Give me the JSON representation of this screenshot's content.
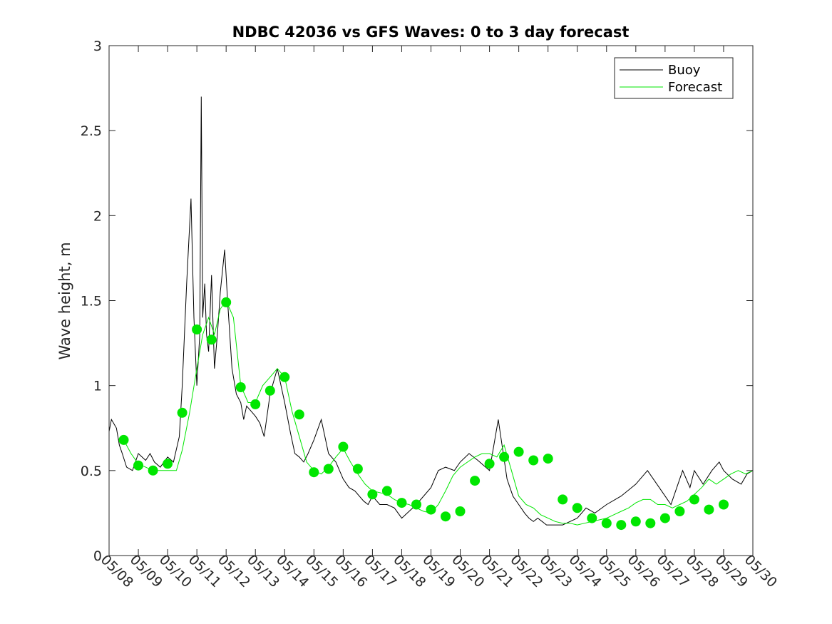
{
  "chart_data": {
    "type": "line",
    "title": "NDBC 42036 vs GFS Waves: 0 to 3 day forecast",
    "xlabel": "",
    "ylabel": "Wave height, m",
    "x_range": [
      0,
      22
    ],
    "ylim": [
      0,
      3
    ],
    "y_ticks": [
      0,
      0.5,
      1,
      1.5,
      2,
      2.5,
      3
    ],
    "y_tick_labels": [
      "0",
      "0.5",
      "1",
      "1.5",
      "2",
      "2.5",
      "3"
    ],
    "x_ticks": [
      0,
      1,
      2,
      3,
      4,
      5,
      6,
      7,
      8,
      9,
      10,
      11,
      12,
      13,
      14,
      15,
      16,
      17,
      18,
      19,
      20,
      21,
      22
    ],
    "x_tick_labels": [
      "05/08",
      "05/09",
      "05/10",
      "05/11",
      "05/12",
      "05/13",
      "05/14",
      "05/15",
      "05/16",
      "05/17",
      "05/18",
      "05/19",
      "05/20",
      "05/21",
      "05/22",
      "05/23",
      "05/24",
      "05/25",
      "05/26",
      "05/27",
      "05/28",
      "05/29",
      "05/30"
    ],
    "grid": false,
    "legend_position": "top-right",
    "legend": [
      {
        "name": "Buoy",
        "color": "#000000"
      },
      {
        "name": "Forecast",
        "color": "#00e600"
      }
    ],
    "colors": {
      "buoy": "#000000",
      "forecast": "#00e600",
      "analysis_points": "#00e600"
    },
    "series": [
      {
        "name": "Buoy",
        "x": [
          0.0,
          0.08,
          0.25,
          0.35,
          0.45,
          0.6,
          0.8,
          1.0,
          1.25,
          1.4,
          1.55,
          1.75,
          2.0,
          2.2,
          2.4,
          2.5,
          2.65,
          2.8,
          2.9,
          3.0,
          3.1,
          3.15,
          3.2,
          3.27,
          3.33,
          3.4,
          3.5,
          3.6,
          3.7,
          3.8,
          3.95,
          4.05,
          4.2,
          4.35,
          4.5,
          4.6,
          4.7,
          4.85,
          5.0,
          5.15,
          5.3,
          5.5,
          5.75,
          6.0,
          6.2,
          6.35,
          6.5,
          6.65,
          6.8,
          7.0,
          7.25,
          7.5,
          7.75,
          8.0,
          8.2,
          8.4,
          8.55,
          8.7,
          8.85,
          9.0,
          9.25,
          9.5,
          9.75,
          10.0,
          10.5,
          11.0,
          11.25,
          11.5,
          11.8,
          12.0,
          12.3,
          12.6,
          13.0,
          13.3,
          13.6,
          13.8,
          14.0,
          14.2,
          14.35,
          14.5,
          14.65,
          14.8,
          14.95,
          15.1,
          15.25,
          15.5,
          15.75,
          16.0,
          16.3,
          16.6,
          17.0,
          17.5,
          18.0,
          18.4,
          18.8,
          19.2,
          19.6,
          19.85,
          20.0,
          20.3,
          20.6,
          20.85,
          21.0,
          21.3,
          21.6,
          21.8,
          22.0
        ],
        "values": [
          0.73,
          0.8,
          0.75,
          0.65,
          0.6,
          0.52,
          0.5,
          0.6,
          0.56,
          0.6,
          0.55,
          0.52,
          0.58,
          0.55,
          0.7,
          1.0,
          1.6,
          2.1,
          1.4,
          1.0,
          1.3,
          2.7,
          1.4,
          1.6,
          1.3,
          1.2,
          1.65,
          1.1,
          1.3,
          1.55,
          1.8,
          1.5,
          1.1,
          0.95,
          0.9,
          0.8,
          0.88,
          0.85,
          0.82,
          0.78,
          0.7,
          0.95,
          1.1,
          0.9,
          0.72,
          0.6,
          0.58,
          0.55,
          0.6,
          0.68,
          0.8,
          0.6,
          0.55,
          0.45,
          0.4,
          0.38,
          0.35,
          0.32,
          0.3,
          0.35,
          0.3,
          0.3,
          0.28,
          0.22,
          0.3,
          0.4,
          0.5,
          0.52,
          0.5,
          0.55,
          0.6,
          0.56,
          0.5,
          0.8,
          0.45,
          0.35,
          0.3,
          0.25,
          0.22,
          0.2,
          0.22,
          0.2,
          0.18,
          0.18,
          0.18,
          0.18,
          0.2,
          0.22,
          0.28,
          0.25,
          0.3,
          0.35,
          0.42,
          0.5,
          0.4,
          0.3,
          0.5,
          0.4,
          0.5,
          0.42,
          0.5,
          0.55,
          0.5,
          0.45,
          0.42,
          0.48,
          0.5
        ]
      },
      {
        "name": "Forecast",
        "x": [
          0.5,
          0.75,
          1.0,
          1.5,
          2.0,
          2.3,
          2.5,
          2.75,
          3.0,
          3.2,
          3.4,
          3.6,
          3.8,
          4.0,
          4.25,
          4.5,
          4.75,
          5.0,
          5.25,
          5.5,
          5.75,
          6.0,
          6.25,
          6.5,
          6.75,
          7.0,
          7.25,
          7.5,
          7.75,
          8.0,
          8.25,
          8.5,
          8.75,
          9.0,
          9.25,
          9.5,
          9.75,
          10.0,
          10.25,
          10.5,
          10.75,
          11.0,
          11.25,
          11.5,
          11.75,
          12.0,
          12.25,
          12.5,
          12.75,
          13.0,
          13.25,
          13.5,
          13.75,
          14.0,
          14.25,
          14.5,
          14.75,
          15.0,
          15.25,
          15.5,
          15.75,
          16.0,
          16.25,
          16.5,
          16.75,
          17.0,
          17.25,
          17.5,
          17.75,
          18.0,
          18.25,
          18.5,
          18.75,
          19.0,
          19.25,
          19.5,
          19.75,
          20.0,
          20.25,
          20.5,
          20.75,
          21.0,
          21.25,
          21.5,
          21.75,
          22.0
        ],
        "values": [
          0.68,
          0.6,
          0.54,
          0.5,
          0.5,
          0.5,
          0.62,
          0.84,
          1.1,
          1.3,
          1.4,
          1.3,
          1.45,
          1.5,
          1.4,
          1.0,
          0.9,
          0.9,
          1.0,
          1.05,
          1.1,
          1.05,
          0.85,
          0.7,
          0.55,
          0.5,
          0.48,
          0.52,
          0.58,
          0.63,
          0.55,
          0.48,
          0.42,
          0.38,
          0.37,
          0.36,
          0.33,
          0.31,
          0.3,
          0.28,
          0.26,
          0.25,
          0.3,
          0.38,
          0.47,
          0.52,
          0.55,
          0.58,
          0.6,
          0.6,
          0.58,
          0.65,
          0.5,
          0.35,
          0.3,
          0.28,
          0.24,
          0.22,
          0.2,
          0.19,
          0.19,
          0.18,
          0.19,
          0.2,
          0.21,
          0.22,
          0.24,
          0.26,
          0.28,
          0.31,
          0.33,
          0.33,
          0.3,
          0.3,
          0.28,
          0.3,
          0.32,
          0.36,
          0.4,
          0.45,
          0.42,
          0.45,
          0.48,
          0.5,
          0.48,
          0.5
        ]
      }
    ],
    "analysis_points": {
      "x": [
        0.5,
        1.0,
        1.5,
        2.0,
        2.5,
        3.0,
        3.5,
        4.0,
        4.5,
        5.0,
        5.5,
        6.0,
        6.5,
        7.0,
        7.5,
        8.0,
        8.5,
        9.0,
        9.5,
        10.0,
        10.5,
        11.0,
        11.5,
        12.0,
        12.5,
        13.0,
        13.5,
        14.0,
        14.5,
        15.0,
        15.5,
        16.0,
        16.5,
        17.0,
        17.5,
        18.0,
        18.5,
        19.0,
        19.5,
        20.0,
        20.5,
        21.0
      ],
      "values": [
        0.68,
        0.53,
        0.5,
        0.54,
        0.84,
        1.33,
        1.27,
        1.49,
        0.99,
        0.89,
        0.97,
        1.05,
        0.83,
        0.49,
        0.51,
        0.64,
        0.51,
        0.36,
        0.38,
        0.31,
        0.3,
        0.27,
        0.23,
        0.26,
        0.44,
        0.54,
        0.58,
        0.61,
        0.56,
        0.57,
        0.33,
        0.28,
        0.22,
        0.19,
        0.18,
        0.2,
        0.19,
        0.22,
        0.26,
        0.33,
        0.27,
        0.3
      ]
    }
  }
}
